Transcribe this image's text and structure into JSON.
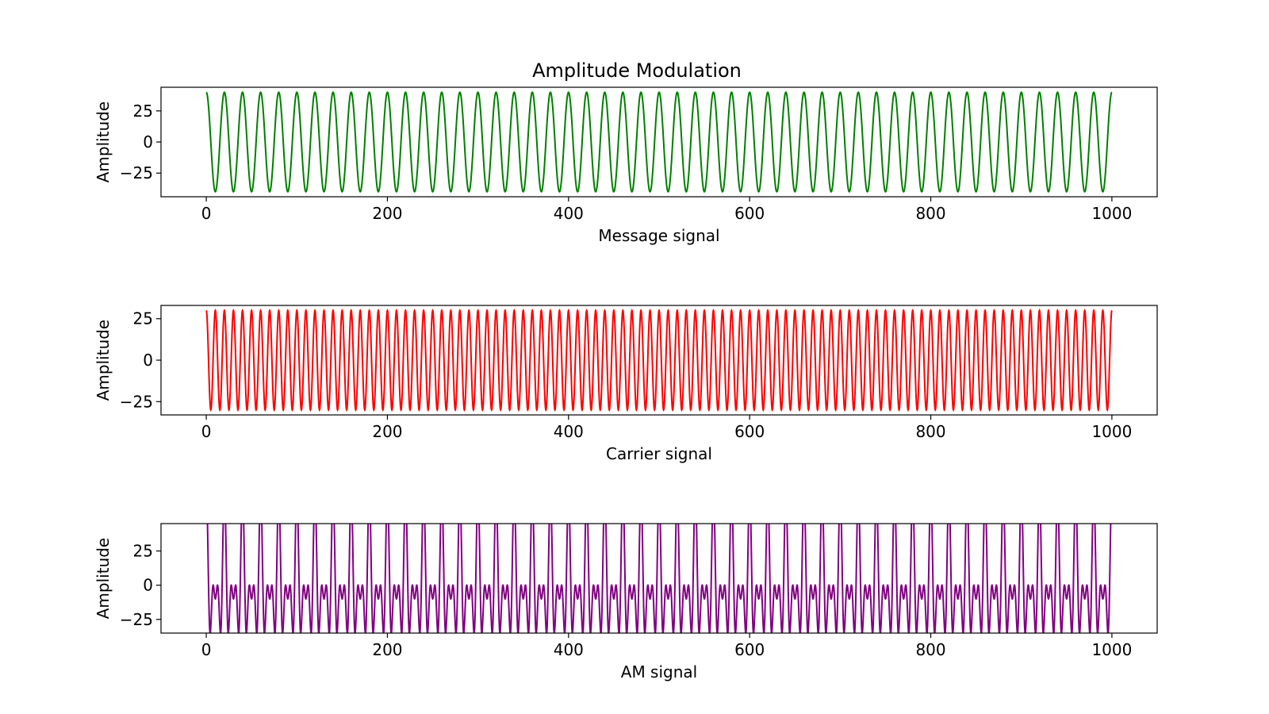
{
  "figure": {
    "title": "Amplitude Modulation"
  },
  "chart_data": [
    {
      "type": "line",
      "title": "Amplitude Modulation",
      "xlabel": "Message signal",
      "ylabel": "Amplitude",
      "xlim": [
        -50,
        1050
      ],
      "ylim": [
        -44,
        44
      ],
      "xticks": [
        0,
        200,
        400,
        600,
        800,
        1000
      ],
      "yticks": [
        -25,
        0,
        25
      ],
      "grid": false,
      "series": [
        {
          "color": "#008000",
          "signal": "cosine",
          "x_start": 0,
          "x_end": 1000,
          "amplitude": 40,
          "cycles": 50,
          "formula": "40*cos(2*pi*50*x/1000)"
        }
      ]
    },
    {
      "type": "line",
      "title": "",
      "xlabel": "Carrier signal",
      "ylabel": "Amplitude",
      "xlim": [
        -50,
        1050
      ],
      "ylim": [
        -33,
        33
      ],
      "xticks": [
        0,
        200,
        400,
        600,
        800,
        1000
      ],
      "yticks": [
        -25,
        0,
        25
      ],
      "grid": false,
      "series": [
        {
          "color": "#ff0000",
          "signal": "cosine",
          "x_start": 0,
          "x_end": 1000,
          "amplitude": 30,
          "cycles": 100,
          "formula": "30*cos(2*pi*100*x/1000)"
        }
      ]
    },
    {
      "type": "line",
      "title": "",
      "xlabel": "AM signal",
      "ylabel": "Amplitude",
      "xlim": [
        -50,
        1050
      ],
      "ylim": [
        -35,
        45
      ],
      "xticks": [
        0,
        200,
        400,
        600,
        800,
        1000
      ],
      "yticks": [
        -25,
        0,
        25
      ],
      "grid": false,
      "series": [
        {
          "color": "#800080",
          "signal": "am",
          "x_start": 0,
          "x_end": 1000,
          "message_amplitude": 40,
          "message_cycles": 50,
          "carrier_amplitude": 30,
          "carrier_cycles": 100,
          "formula": "(1 + m(x)/30) * 30*cos(2*pi*100*x/1000)"
        }
      ]
    }
  ]
}
